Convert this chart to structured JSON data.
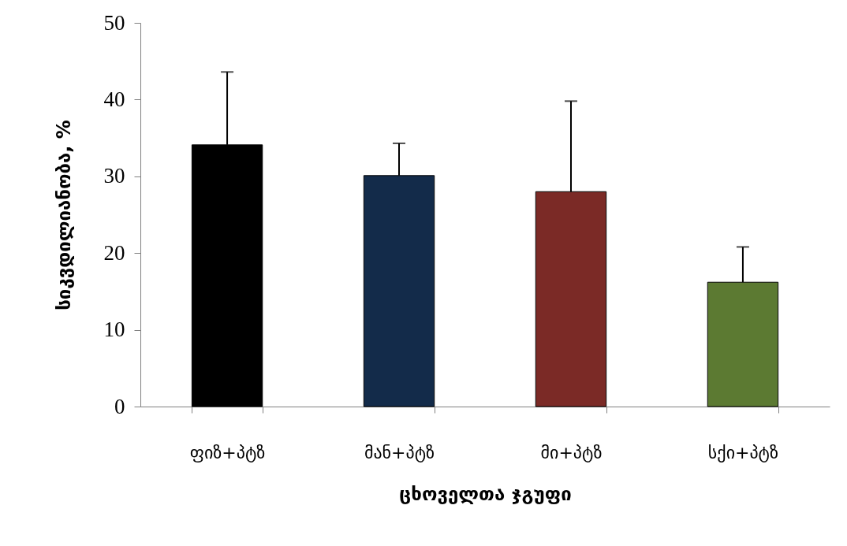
{
  "chart_data": {
    "type": "bar",
    "xlabel": "ცხოველთა ჯგუფი",
    "ylabel": "სიკვდილიანობა, %",
    "categories": [
      "ფიზ+პტზ",
      "მან+პტზ",
      "მი+პტზ",
      "სქი+პტზ"
    ],
    "values": [
      34.1,
      30.1,
      28.0,
      16.2
    ],
    "errors": [
      [
        34.1,
        43.6
      ],
      [
        30.1,
        34.3
      ],
      [
        28.0,
        39.8
      ],
      [
        16.2,
        20.8
      ]
    ],
    "colors": [
      "#000000",
      "#132b4a",
      "#7b2a26",
      "#5c7a32"
    ],
    "ylim": [
      0,
      50
    ],
    "yticks": [
      0,
      10,
      20,
      30,
      40,
      50
    ]
  }
}
